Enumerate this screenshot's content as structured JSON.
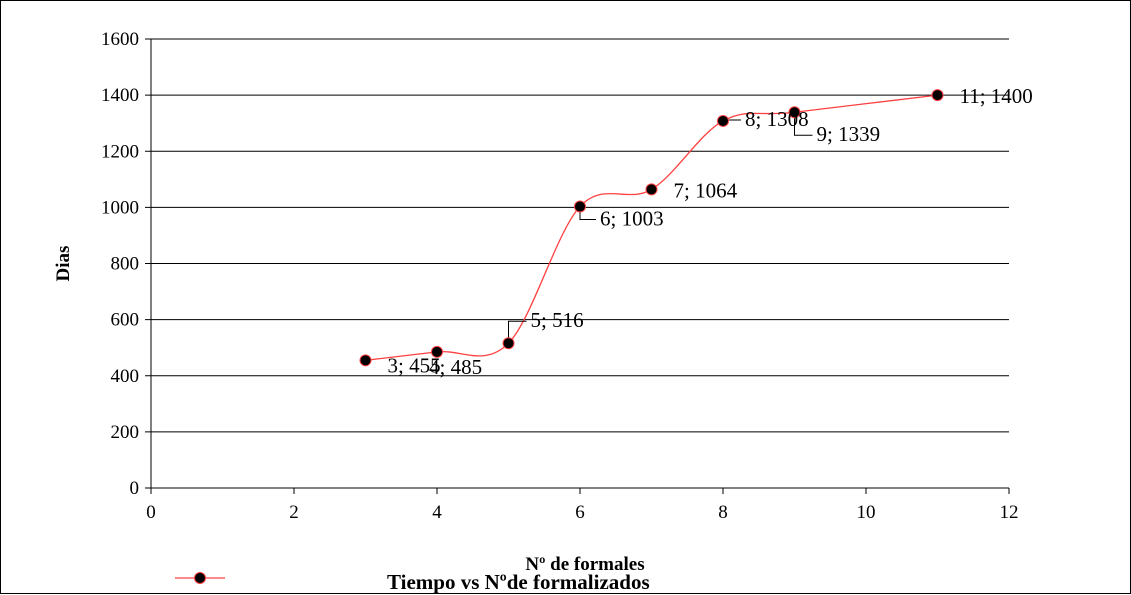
{
  "chart_data": {
    "type": "line",
    "xlabel": "Nº de formales",
    "ylabel": "Dias",
    "xlim": [
      0,
      12
    ],
    "ylim": [
      0,
      1600
    ],
    "xticks": [
      0,
      2,
      4,
      6,
      8,
      10,
      12
    ],
    "yticks": [
      0,
      200,
      400,
      600,
      800,
      1000,
      1200,
      1400,
      1600
    ],
    "grid": "horizontal",
    "legend_position": "bottom",
    "line_color": "#ff4040",
    "marker_color": "#000000",
    "series": [
      {
        "name": "Tiempo vs Nºde formalizados",
        "x": [
          3,
          4,
          5,
          6,
          7,
          8,
          9,
          11
        ],
        "y": [
          455,
          485,
          516,
          1003,
          1064,
          1308,
          1339,
          1400
        ],
        "labels": [
          "3; 455",
          "4; 485",
          "5; 516",
          "6; 1003",
          "7; 1064",
          "8; 1308",
          "9; 1339",
          "11; 1400"
        ]
      }
    ]
  }
}
